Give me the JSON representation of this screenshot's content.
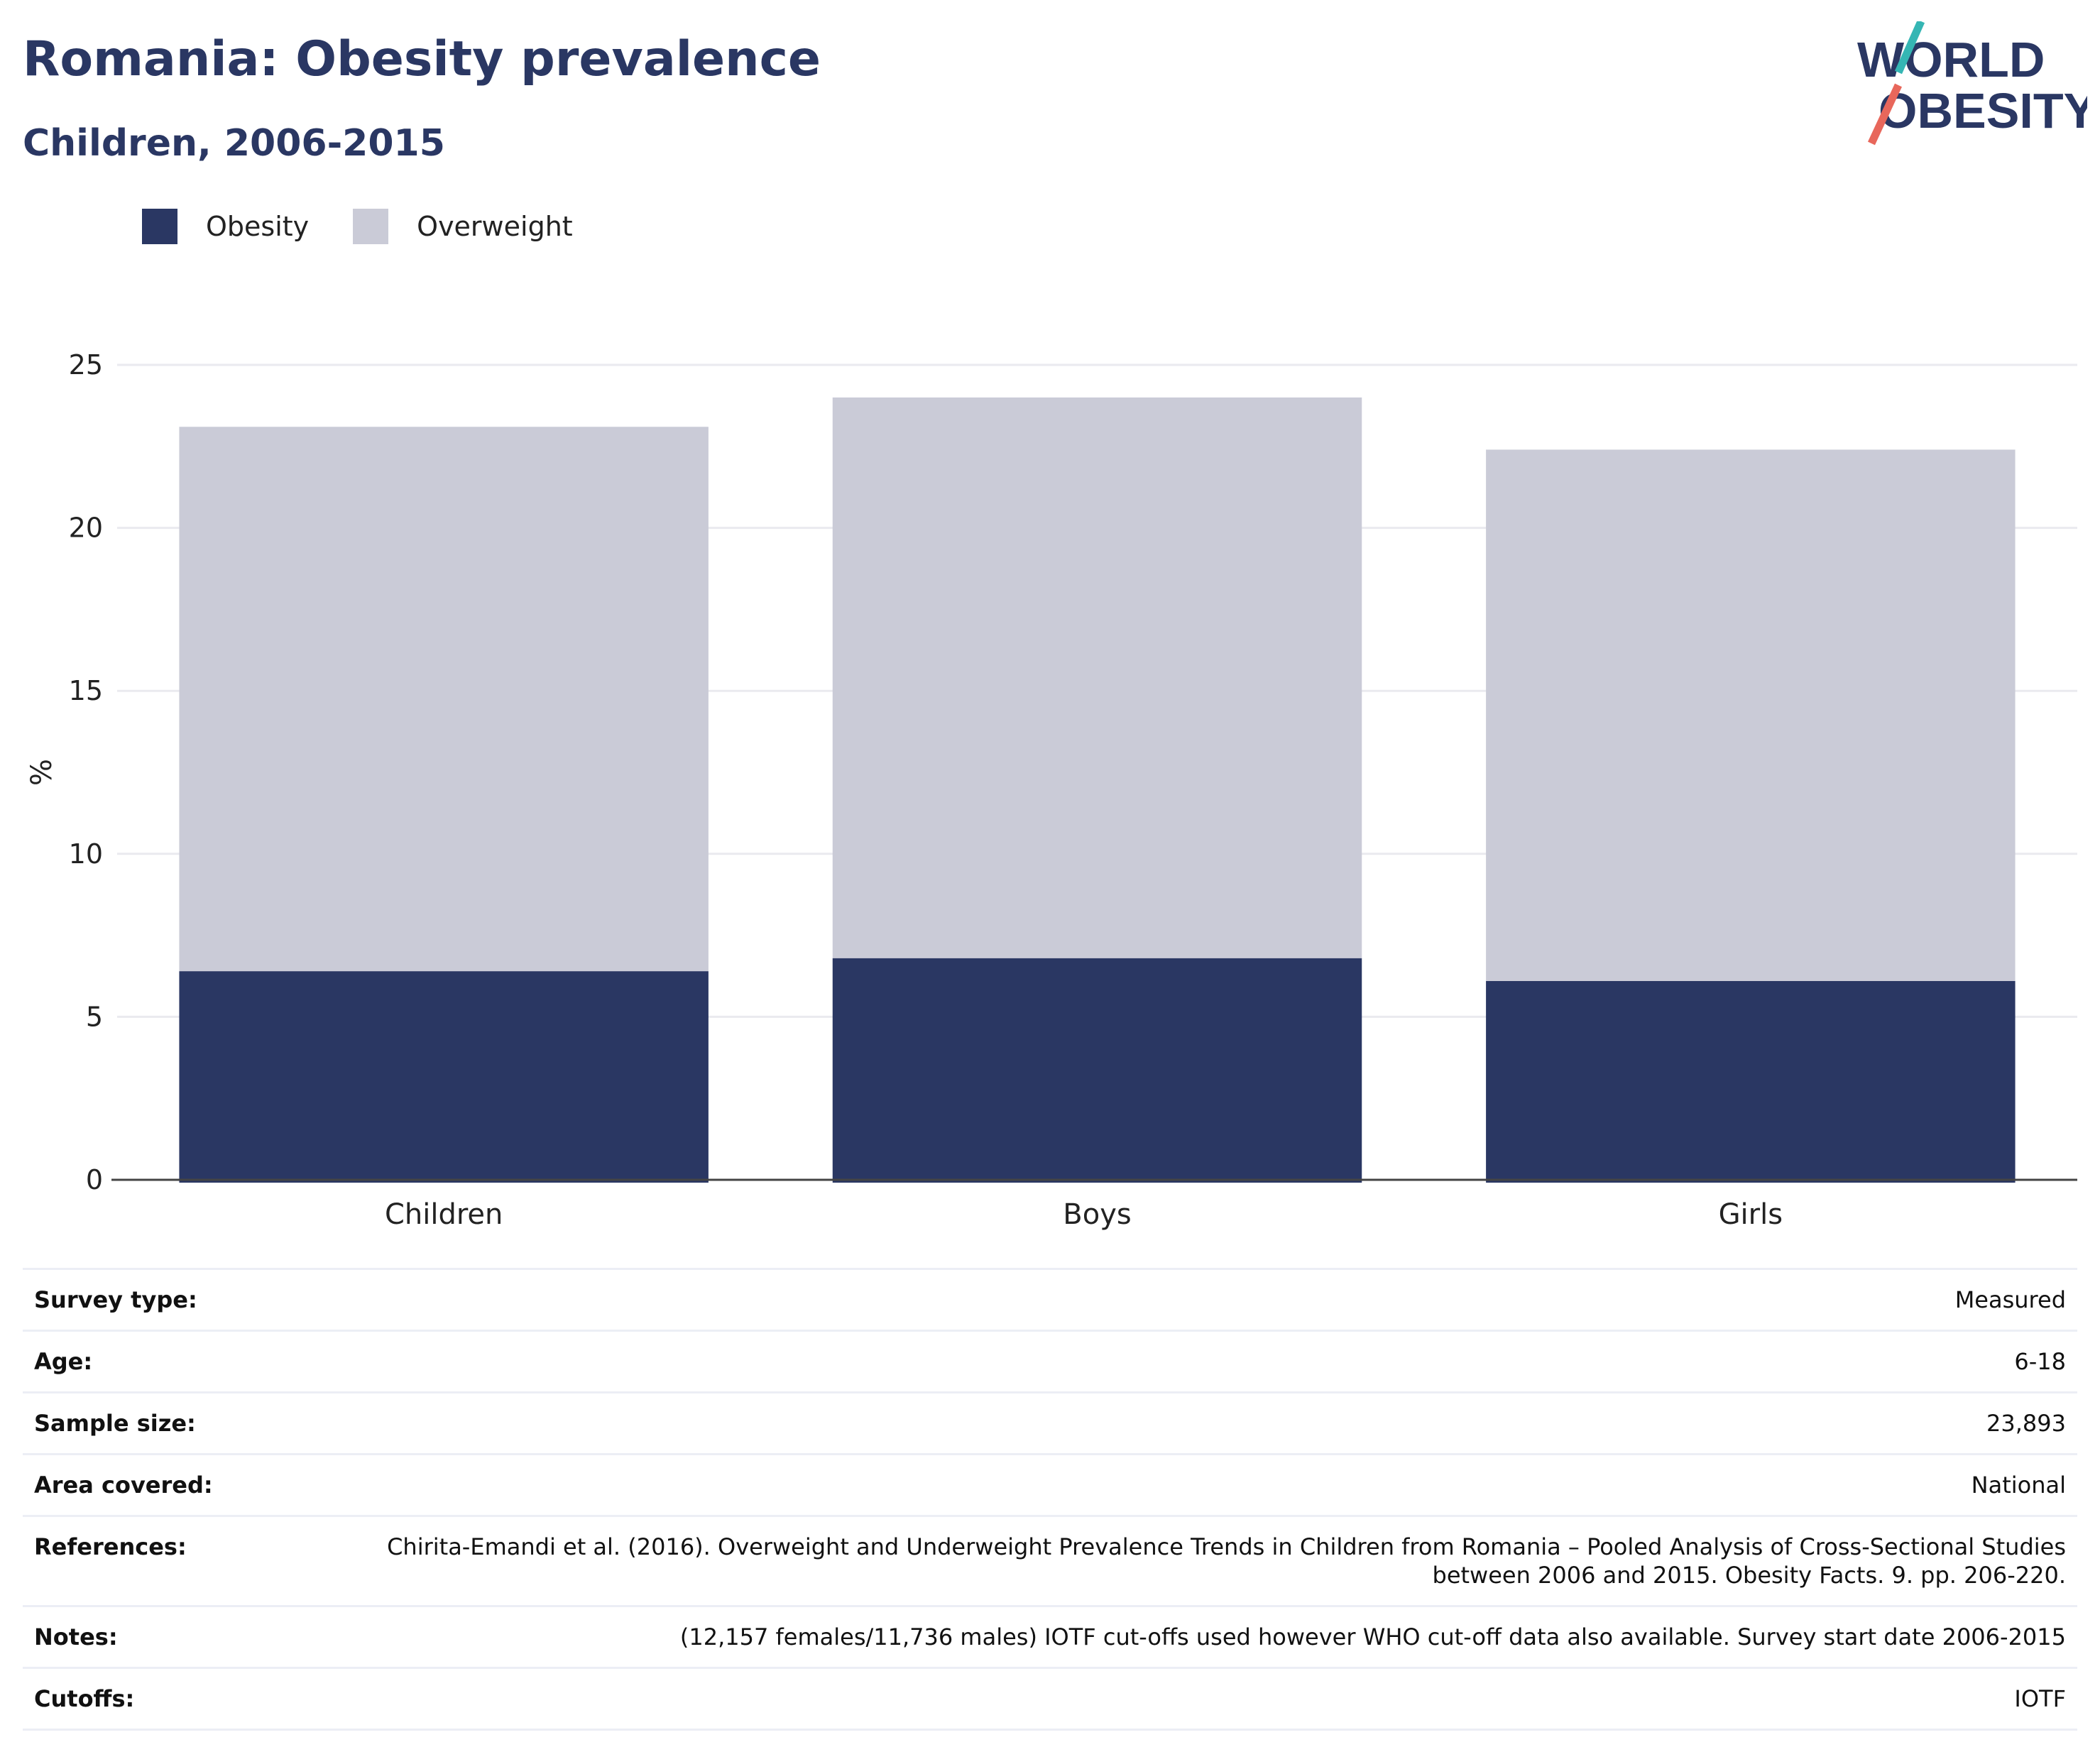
{
  "header": {
    "title": "Romania: Obesity prevalence",
    "subtitle": "Children, 2006-2015"
  },
  "logo": {
    "line1": "WORLD",
    "line2": "OBESITY"
  },
  "colors": {
    "obesity": "#2a3763",
    "overweight": "#cacbd7",
    "accent_teal": "#35b6b4",
    "accent_coral": "#e8675b",
    "grid": "#eaeaef"
  },
  "chart_data": {
    "type": "bar",
    "stacked": true,
    "categories": [
      "Children",
      "Boys",
      "Girls"
    ],
    "series": [
      {
        "name": "Obesity",
        "values": [
          6.4,
          6.8,
          6.1
        ]
      },
      {
        "name": "Overweight",
        "values": [
          16.7,
          17.2,
          16.3
        ]
      }
    ],
    "ylabel": "%",
    "ylim": [
      0,
      25
    ],
    "yticks": [
      0,
      5,
      10,
      15,
      20,
      25
    ],
    "grid": true,
    "legend_position": "top-left"
  },
  "info": {
    "rows": [
      {
        "label": "Survey type:",
        "value": "Measured"
      },
      {
        "label": "Age:",
        "value": "6-18"
      },
      {
        "label": "Sample size:",
        "value": "23,893"
      },
      {
        "label": "Area covered:",
        "value": "National"
      },
      {
        "label": "References:",
        "value": "Chirita-Emandi et al. (2016). Overweight and Underweight Prevalence Trends in Children from Romania – Pooled Analysis of Cross-Sectional Studies between 2006 and 2015. Obesity Facts. 9. pp. 206-220."
      },
      {
        "label": "Notes:",
        "value": "(12,157 females/11,736 males) IOTF cut-offs used however WHO cut-off data also available. Survey start date 2006-2015"
      },
      {
        "label": "Cutoffs:",
        "value": "IOTF"
      }
    ]
  }
}
